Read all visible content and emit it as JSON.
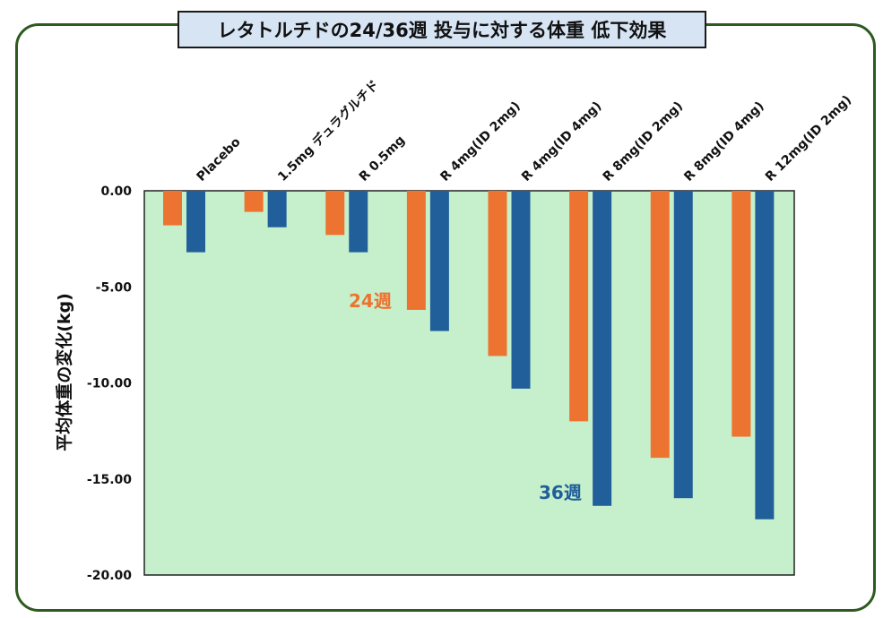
{
  "chart_data": {
    "type": "bar",
    "title": "レタトルチドの24/36週 投与に対する体重 低下効果",
    "xlabel": "",
    "ylabel": "平均体重の変化(kg)",
    "ylim": [
      -20,
      0
    ],
    "yticks": [
      0,
      -5,
      -10,
      -15,
      -20
    ],
    "ytick_labels": [
      "0.00",
      "-5.00",
      "-10.00",
      "-15.00",
      "-20.00"
    ],
    "categories": [
      "Placebo",
      "1.5mg デュラグルチド",
      "R 0.5mg",
      "R 4mg(ID 2mg)",
      "R 4mg(ID 4mg)",
      "R 8mg(ID 2mg)",
      "R 8mg(ID 4mg)",
      "R 12mg(ID 2mg)"
    ],
    "series": [
      {
        "name": "24週",
        "color": "#ed7330",
        "values": [
          -1.8,
          -1.1,
          -2.3,
          -6.2,
          -8.6,
          -12.0,
          -13.9,
          -12.8
        ]
      },
      {
        "name": "36週",
        "color": "#215f9a",
        "values": [
          -3.2,
          -1.9,
          -3.2,
          -7.3,
          -10.3,
          -16.4,
          -16.0,
          -17.1
        ]
      }
    ],
    "legend": "annotations-in-plot",
    "plot_background": "#c6f0cc"
  }
}
